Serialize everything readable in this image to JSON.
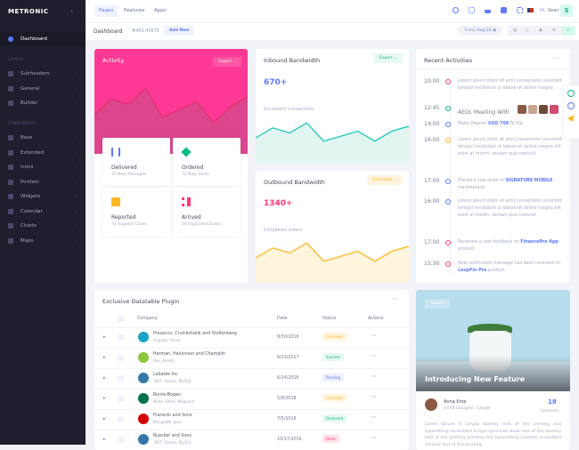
{
  "sidebar": {
    "logo": "METRONIC",
    "toggle_icon": "chevrons-left-icon",
    "items": [
      {
        "label": "Dashboard",
        "active": true
      }
    ],
    "section_layout": "LAYOUT",
    "layout_items": [
      {
        "label": "Subheaders"
      },
      {
        "label": "General"
      },
      {
        "label": "Builder"
      }
    ],
    "section_components": "COMPONENTS",
    "component_items": [
      {
        "label": "Base"
      },
      {
        "label": "Extended"
      },
      {
        "label": "Icons"
      },
      {
        "label": "Portlets"
      },
      {
        "label": "Widgets"
      },
      {
        "label": "Calendar"
      },
      {
        "label": "Charts"
      },
      {
        "label": "Maps"
      }
    ]
  },
  "topbar": {
    "tabs": [
      "Pages",
      "Features",
      "Apps"
    ],
    "greeting": "Hi,",
    "user": "Sean",
    "avatar_letter": "S"
  },
  "subheader": {
    "title": "Dashboard",
    "code": "#XRS-45670",
    "add_new": "Add New",
    "today": "Today",
    "date": "Aug 16"
  },
  "activity": {
    "title": "Activity",
    "export": "Export",
    "color": "#fd3995",
    "chart_data": {
      "type": "area",
      "values": [
        30,
        42,
        38,
        50,
        28,
        34,
        40,
        24,
        36,
        44
      ]
    },
    "stats": [
      {
        "title": "Delivered",
        "sub": "15 New Packages"
      },
      {
        "title": "Ordered",
        "sub": "72 New Items"
      },
      {
        "title": "Reported",
        "sub": "72 Support Cases"
      },
      {
        "title": "Arrived",
        "sub": "34 Upgraded Boxes"
      }
    ]
  },
  "inbound": {
    "title": "Inbound Bandwidth",
    "export": "Export",
    "value": "670+",
    "caption": "Successful transactions",
    "color": "#1dc9b7",
    "chart_data": {
      "type": "area",
      "values": [
        30,
        42,
        36,
        48,
        26,
        32,
        38,
        26,
        38,
        44
      ]
    }
  },
  "outbound": {
    "title": "Outbound Bandwidth",
    "download": "Download",
    "value": "1340+",
    "caption": "Completed orders",
    "color": "#ffb822",
    "chart_data": {
      "type": "area",
      "values": [
        30,
        42,
        36,
        48,
        26,
        32,
        38,
        26,
        38,
        44
      ]
    }
  },
  "recent": {
    "title": "Recent Activities",
    "items": [
      {
        "time": "10:00",
        "color": "#fd397a",
        "text": "Lorem ipsum dolor sit amit,consectetur eiusmdd tempor incididunt ut labore et dolore magna"
      },
      {
        "time": "12:45",
        "color": "#0abb87",
        "text": "AEOL Meeting With",
        "big": true
      },
      {
        "time": "14:00",
        "color": "#5d78ff",
        "pre": "Make Deposit ",
        "link": "USD 700",
        "post": " To ESL"
      },
      {
        "time": "16:00",
        "color": "#ffb822",
        "text": "Lorem ipsum dolor sit amit,consectetur eiusmdd tempor incididunt ut labore et dolore magna elit enim at minim. veniam quis nostrud"
      },
      {
        "time": "17:00",
        "color": "#5d78ff",
        "pre": "Placed a new order in ",
        "link": "SIGNATURE MOBILE",
        "post": " marketplace."
      },
      {
        "time": "16:00",
        "color": "#5d78ff",
        "text": "Lorem ipsum dolor sit amit,consectetur eiusmdd tempor incididunt ut labore et dolore magna elit enim at minim. veniam quis nostrud"
      },
      {
        "time": "17:00",
        "color": "#fd397a",
        "pre": "Received a new feedback on ",
        "link": "FinancePro App",
        "post": " product."
      },
      {
        "time": "15:30",
        "color": "#fd397a",
        "pre": "New notification message has been received on ",
        "link": "LoopFin Pro",
        "post": " product."
      }
    ]
  },
  "table": {
    "title": "Exclusive Datatable Plugin",
    "headers": [
      "Company",
      "Date",
      "Status",
      "Actions"
    ],
    "rows": [
      {
        "company": "Prosacco, Cruickshank and Stoltenberg",
        "tech": "Angular, React",
        "date": "8/30/2016",
        "status": "Canceled",
        "logo": "#1aa3c4"
      },
      {
        "company": "Herman, Halvorson and Champlin",
        "tech": "Vue, Kendo",
        "date": "6/23/2017",
        "status": "Success",
        "logo": "#8cc63f"
      },
      {
        "company": "Labadie Inc",
        "tech": ".NET, Oracle, MySQL",
        "date": "6/24/2016",
        "status": "Pending",
        "logo": "#3776ab"
      },
      {
        "company": "Runte-Bogan",
        "tech": "Node, SASS, Webpack",
        "date": "5/9/2018",
        "status": "Canceled",
        "logo": "#00704a"
      },
      {
        "company": "Franecki and Sons",
        "tech": "MongoDB, Java",
        "date": "7/5/2016",
        "status": "Delivered",
        "logo": "#d40000"
      },
      {
        "company": "Ruecker and Sons",
        "tech": ".NET, Oracle, MySQL",
        "date": "10/17/2016",
        "status": "Done",
        "logo": "#3776ab"
      }
    ]
  },
  "feature": {
    "badge": "Recent",
    "title": "Introducing New Feature",
    "author": "Anna Krox",
    "role": "UX/UI Designer, Google",
    "count": "18",
    "count_label": "Comments",
    "text": "Lorem Ipsum is simply dummy text of the printing and typesetting scrambled a type specimen book text of the dummy text of the printing printing and typesetting industry scrambled dummy text of the printing."
  }
}
